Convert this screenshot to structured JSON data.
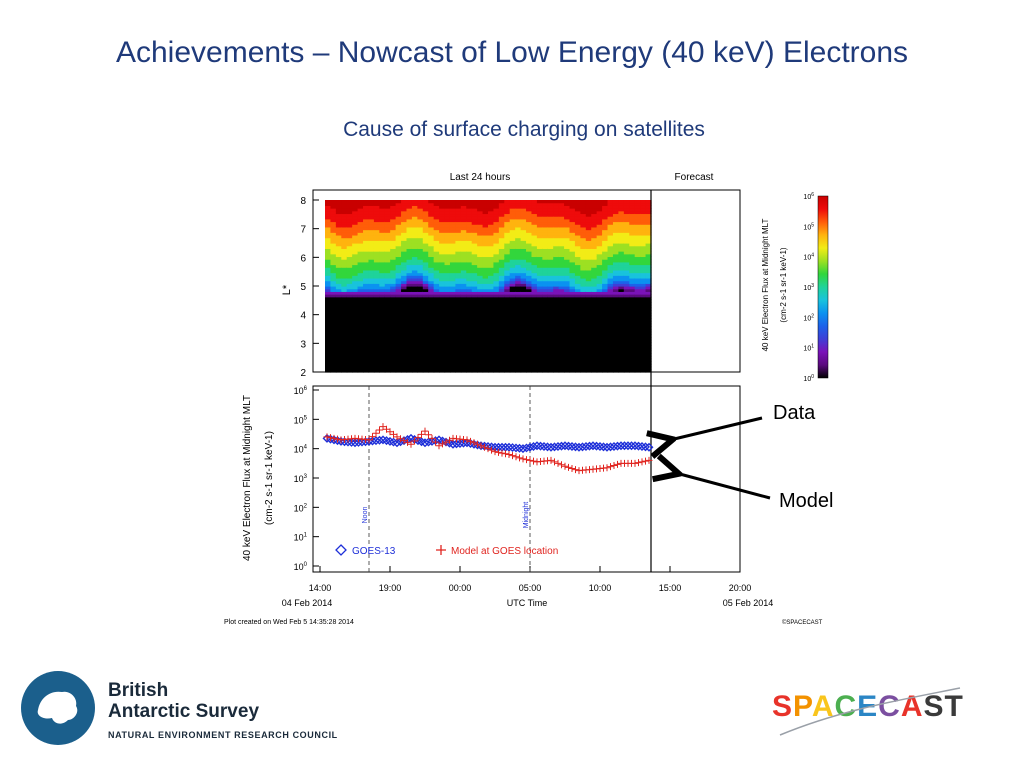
{
  "slide": {
    "title": "Achievements – Nowcast of Low Energy (40 keV) Electrons",
    "subtitle": "Cause of surface charging on satellites"
  },
  "callouts": {
    "data": "Data",
    "model": "Model"
  },
  "logos": {
    "bas_line1": "British",
    "bas_line2": "Antarctic Survey",
    "bas_council": "NATURAL ENVIRONMENT RESEARCH COUNCIL",
    "spacecast": "SPACECAST"
  },
  "chart_data": [
    {
      "type": "heatmap",
      "panel_labels": [
        "Last 24 hours",
        "Forecast"
      ],
      "ylabel": "L*",
      "yticks": [
        2,
        3,
        4,
        5,
        6,
        7,
        8
      ],
      "ylim": [
        2,
        8
      ],
      "xlim_hours_from_start": [
        0,
        30
      ],
      "nowcast_end_hour": 24,
      "colorbar": {
        "label_line1": "40 keV Electron Flux at Midnight MLT",
        "label_line2": "(cm-2 s-1 sr-1 keV-1)",
        "ticks": [
          0,
          1,
          2,
          3,
          4,
          5,
          6
        ],
        "tick_base": "10",
        "colors": [
          "#000000",
          "#5a0a7e",
          "#7a12b8",
          "#3f3fd6",
          "#1c62ea",
          "#0b92f0",
          "#19c3dc",
          "#1fd39a",
          "#32d63c",
          "#9de022",
          "#f2ec16",
          "#ffb30e",
          "#ff5d09",
          "#ee0b0b",
          "#c90000"
        ]
      },
      "flux_profile_log10": [
        {
          "L": 2.0,
          "flux": 0
        },
        {
          "L": 4.6,
          "flux": 0
        },
        {
          "L": 4.8,
          "flux": 1.0
        },
        {
          "L": 5.0,
          "flux": 2.0
        },
        {
          "L": 5.3,
          "flux": 2.7
        },
        {
          "L": 5.6,
          "flux": 3.2
        },
        {
          "L": 6.0,
          "flux": 3.7
        },
        {
          "L": 6.5,
          "flux": 4.3
        },
        {
          "L": 7.0,
          "flux": 4.9
        },
        {
          "L": 7.5,
          "flux": 5.5
        },
        {
          "L": 8.0,
          "flux": 5.9
        }
      ]
    },
    {
      "type": "line",
      "xlabel": "UTC Time",
      "ylabel_line1": "40 keV Electron Flux at Midnight MLT",
      "ylabel_line2": "(cm-2 s-1 sr-1 keV-1)",
      "y_scale": "log",
      "ylim_log10": [
        0,
        6
      ],
      "yticks": [
        0,
        1,
        2,
        3,
        4,
        5,
        6
      ],
      "ytick_base": "10",
      "xlim_hours": [
        0,
        30
      ],
      "xticks": [
        {
          "h": 0,
          "label": "14:00"
        },
        {
          "h": 5,
          "label": "19:00"
        },
        {
          "h": 10,
          "label": "00:00"
        },
        {
          "h": 15,
          "label": "05:00"
        },
        {
          "h": 20,
          "label": "10:00"
        },
        {
          "h": 25,
          "label": "15:00"
        },
        {
          "h": 30,
          "label": "20:00"
        }
      ],
      "date_left": "04 Feb 2014",
      "date_right": "05 Feb 2014",
      "markers": [
        {
          "h": 3.5,
          "label": "Noon"
        },
        {
          "h": 15,
          "label": "Midnight"
        }
      ],
      "now_h": 24,
      "footer_left": "Plot created on Wed Feb  5 14:35:28 2014",
      "footer_right": "©SPACECAST",
      "series": [
        {
          "name": "GOES-13",
          "marker": "diamond",
          "color": "#1e2fd8",
          "points": [
            {
              "h": 0.5,
              "v": 4.35
            },
            {
              "h": 1.5,
              "v": 4.25
            },
            {
              "h": 2.5,
              "v": 4.2
            },
            {
              "h": 3.5,
              "v": 4.25
            },
            {
              "h": 4.5,
              "v": 4.3
            },
            {
              "h": 5.5,
              "v": 4.2
            },
            {
              "h": 6.5,
              "v": 4.35
            },
            {
              "h": 7.5,
              "v": 4.2
            },
            {
              "h": 8.5,
              "v": 4.3
            },
            {
              "h": 9.5,
              "v": 4.15
            },
            {
              "h": 10.5,
              "v": 4.2
            },
            {
              "h": 11.5,
              "v": 4.1
            },
            {
              "h": 12.5,
              "v": 4.05
            },
            {
              "h": 13.5,
              "v": 4.05
            },
            {
              "h": 14.5,
              "v": 4.0
            },
            {
              "h": 15.5,
              "v": 4.1
            },
            {
              "h": 16.5,
              "v": 4.05
            },
            {
              "h": 17.5,
              "v": 4.1
            },
            {
              "h": 18.5,
              "v": 4.05
            },
            {
              "h": 19.5,
              "v": 4.1
            },
            {
              "h": 20.5,
              "v": 4.05
            },
            {
              "h": 21.5,
              "v": 4.1
            },
            {
              "h": 22.5,
              "v": 4.1
            },
            {
              "h": 23.5,
              "v": 4.05
            }
          ]
        },
        {
          "name": "Model at GOES location",
          "marker": "plus",
          "color": "#e0241f",
          "points": [
            {
              "h": 0.5,
              "v": 4.4
            },
            {
              "h": 1.5,
              "v": 4.3
            },
            {
              "h": 2.5,
              "v": 4.35
            },
            {
              "h": 3.5,
              "v": 4.3
            },
            {
              "h": 4.5,
              "v": 4.75
            },
            {
              "h": 5.5,
              "v": 4.4
            },
            {
              "h": 6.5,
              "v": 4.15
            },
            {
              "h": 7.5,
              "v": 4.6
            },
            {
              "h": 8.5,
              "v": 4.1
            },
            {
              "h": 9.5,
              "v": 4.35
            },
            {
              "h": 10.5,
              "v": 4.3
            },
            {
              "h": 11.5,
              "v": 4.1
            },
            {
              "h": 12.5,
              "v": 3.9
            },
            {
              "h": 13.5,
              "v": 3.8
            },
            {
              "h": 14.5,
              "v": 3.65
            },
            {
              "h": 15.5,
              "v": 3.55
            },
            {
              "h": 16.5,
              "v": 3.6
            },
            {
              "h": 17.5,
              "v": 3.4
            },
            {
              "h": 18.5,
              "v": 3.25
            },
            {
              "h": 19.5,
              "v": 3.3
            },
            {
              "h": 20.5,
              "v": 3.35
            },
            {
              "h": 21.5,
              "v": 3.5
            },
            {
              "h": 22.5,
              "v": 3.5
            },
            {
              "h": 23.5,
              "v": 3.6
            }
          ]
        }
      ]
    }
  ]
}
